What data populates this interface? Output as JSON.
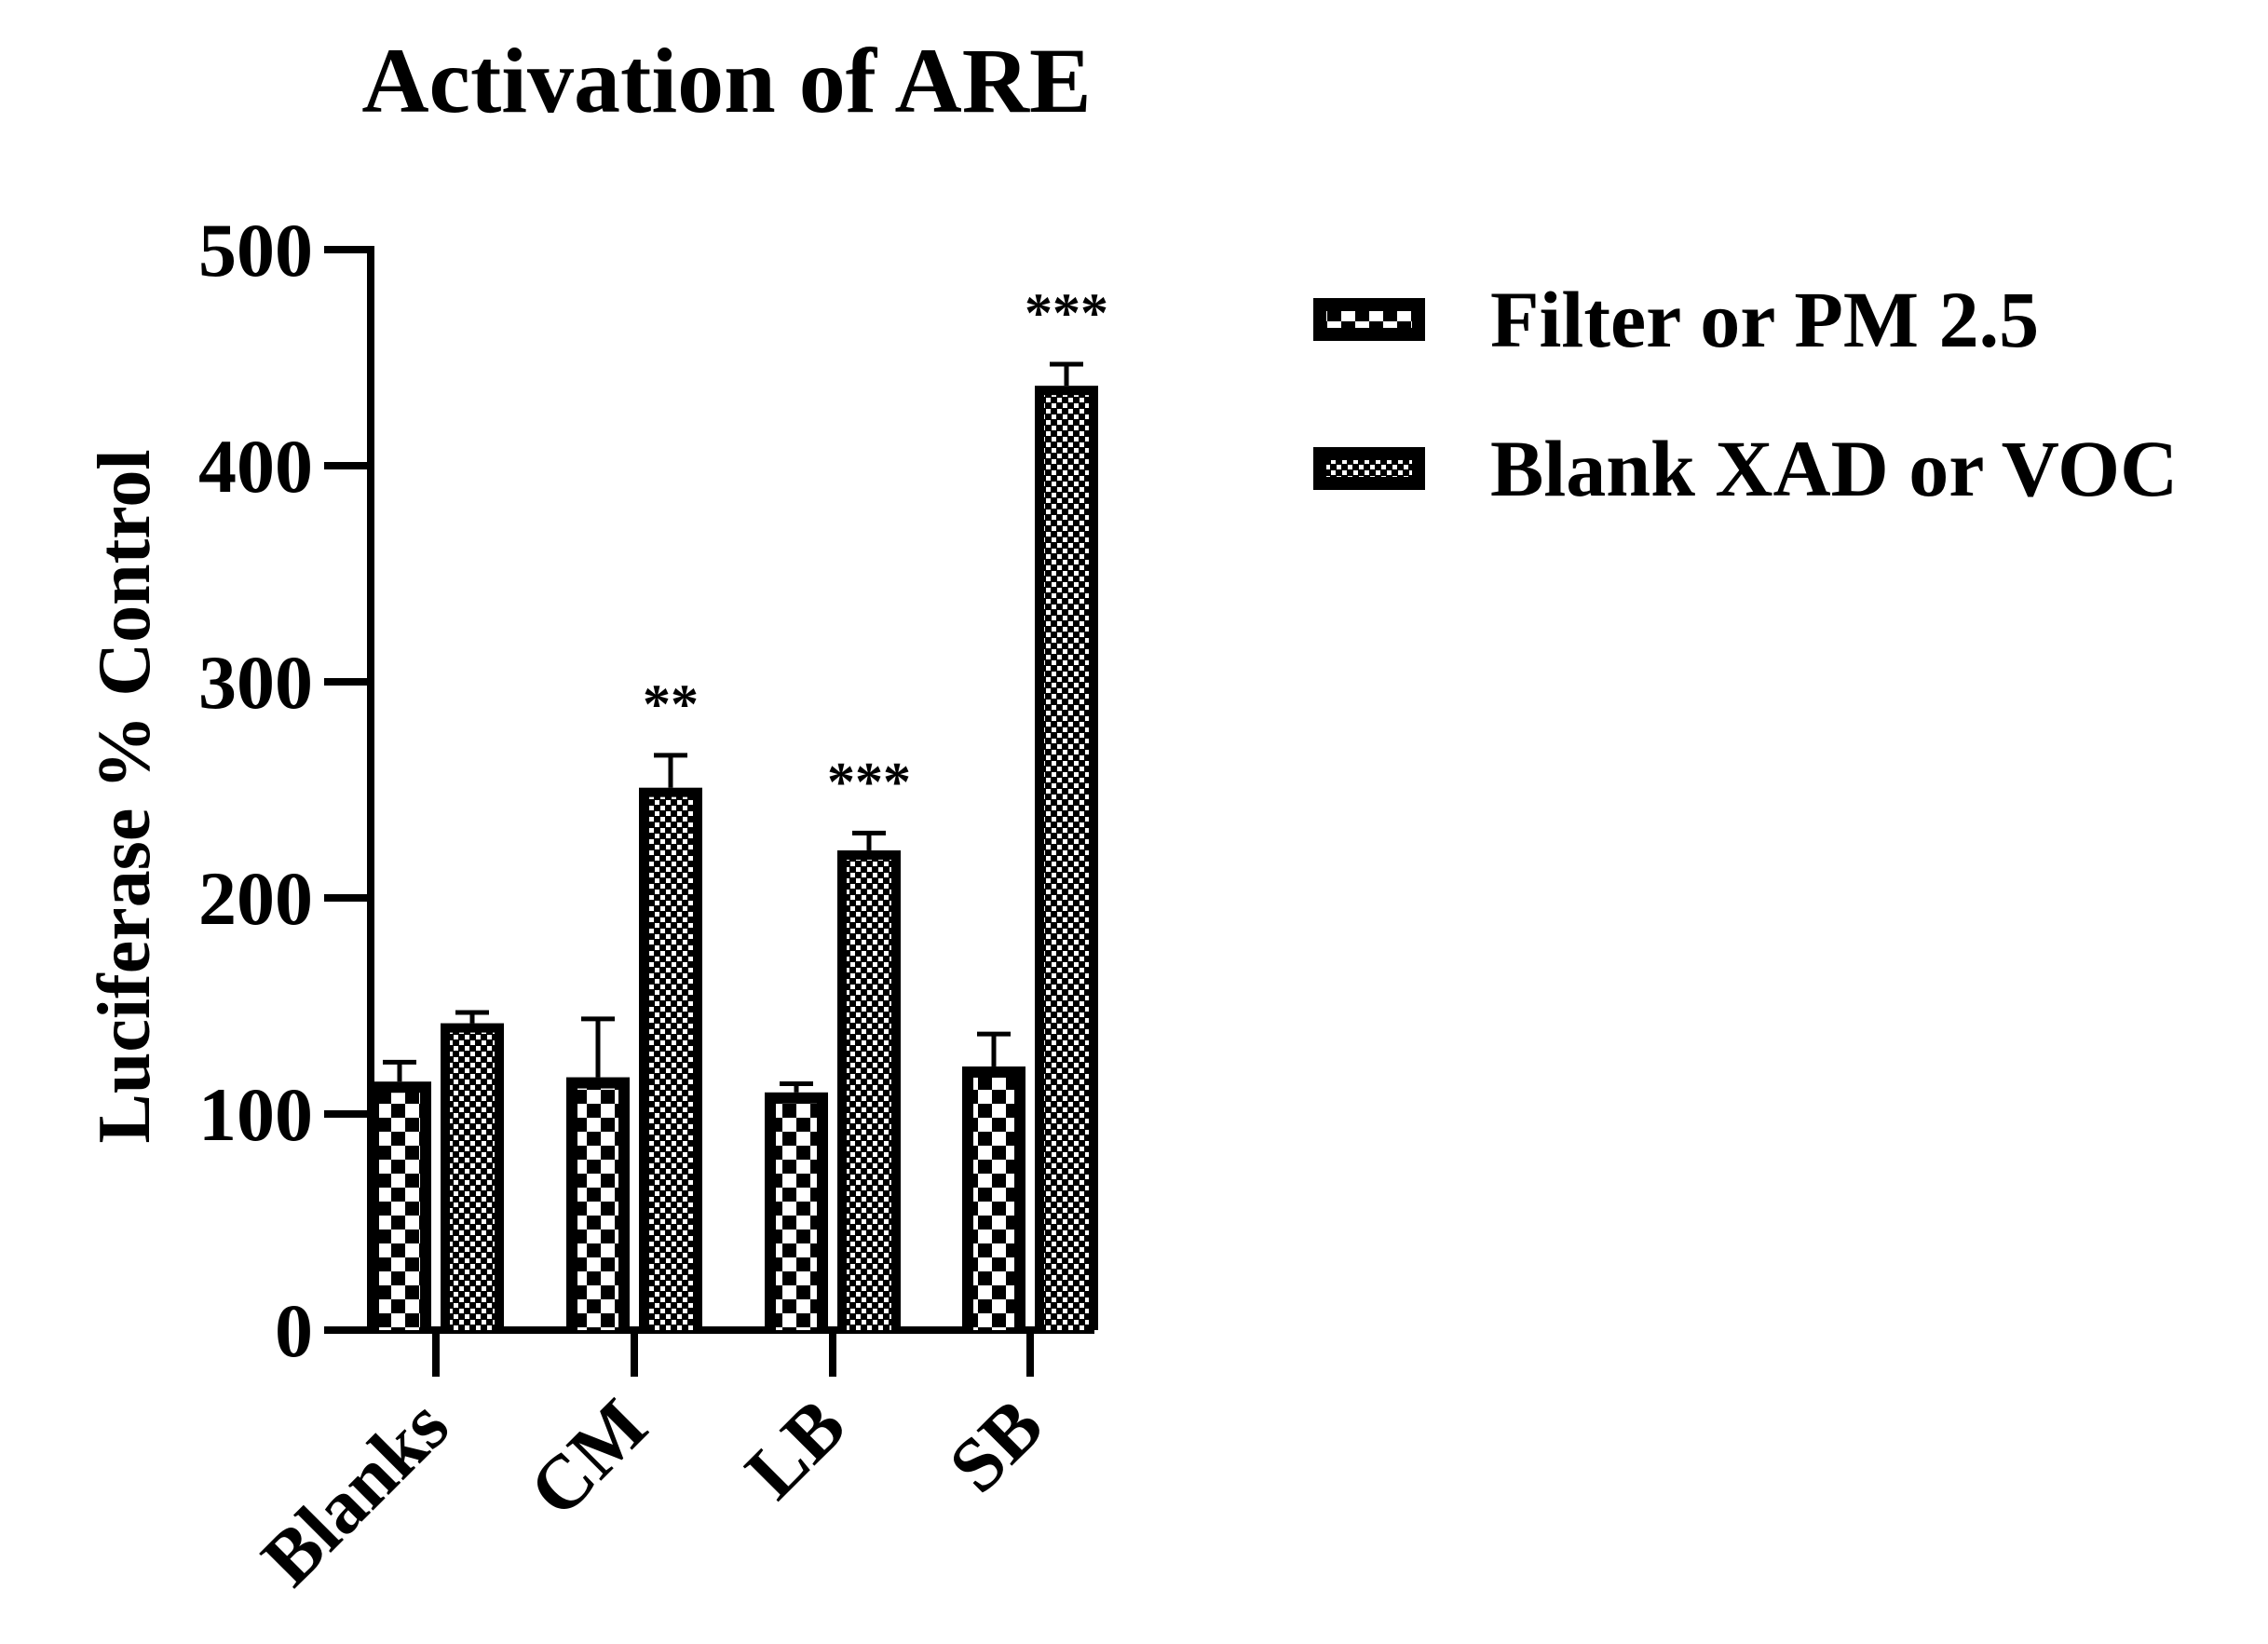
{
  "chart_data": {
    "type": "bar",
    "title": "Activation of ARE",
    "xlabel": "",
    "ylabel": "Luciferase % Control",
    "ylim": [
      0,
      500
    ],
    "yticks": [
      "0",
      "100",
      "200",
      "300",
      "400",
      "500"
    ],
    "categories": [
      "Blanks",
      "CM",
      "LB",
      "SB"
    ],
    "series": [
      {
        "name": "Filter or PM 2.5",
        "pattern": "large-checker",
        "values": [
          115,
          117,
          110,
          122
        ],
        "errors": [
          9,
          27,
          4,
          15
        ],
        "annotations": [
          "",
          "",
          "",
          ""
        ]
      },
      {
        "name": "Blank XAD or VOC",
        "pattern": "fine-checker",
        "values": [
          142,
          251,
          222,
          437
        ],
        "errors": [
          5,
          15,
          8,
          10
        ],
        "annotations": [
          "",
          "**",
          "***",
          "***"
        ]
      }
    ],
    "legend_position": "top-right",
    "grid": false,
    "colors": {
      "bar": "#000000",
      "fill": "#ffffff"
    }
  }
}
